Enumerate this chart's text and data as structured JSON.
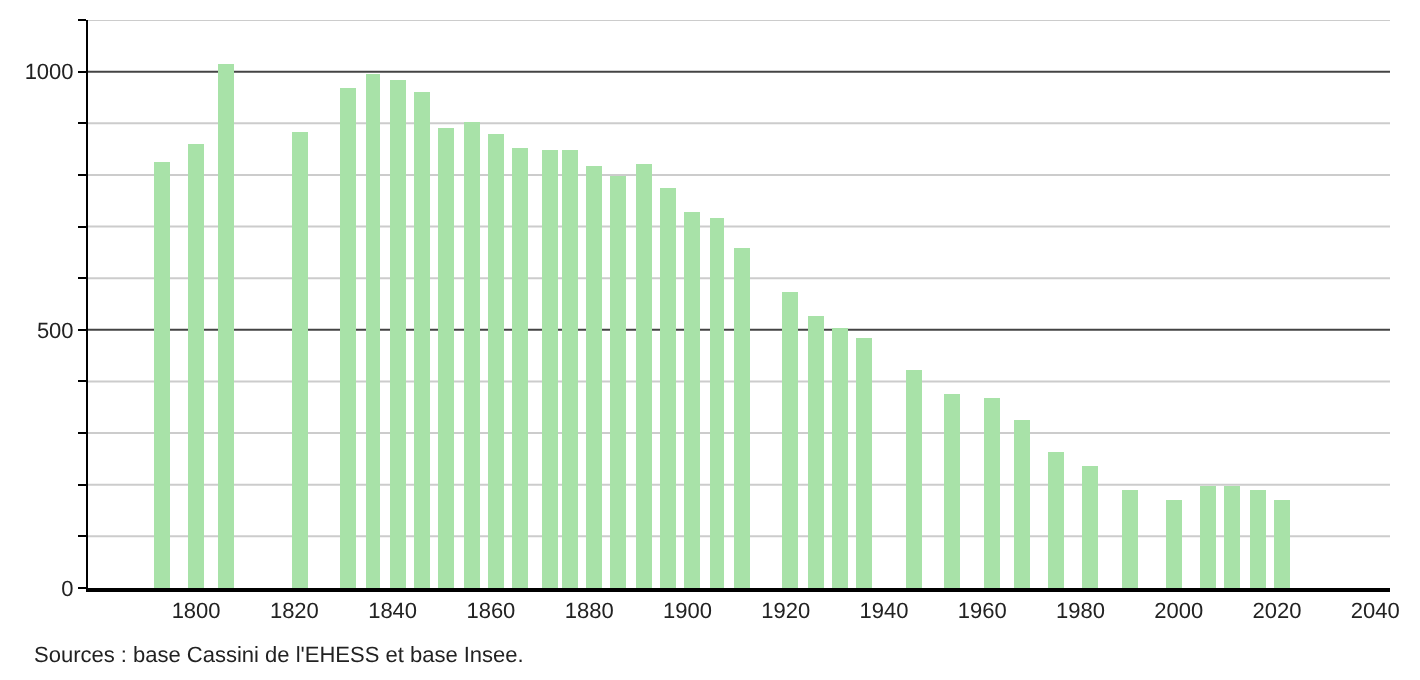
{
  "chart_data": {
    "type": "bar",
    "x": [
      1793,
      1800,
      1806,
      1821,
      1831,
      1836,
      1841,
      1846,
      1851,
      1856,
      1861,
      1866,
      1872,
      1876,
      1881,
      1886,
      1891,
      1896,
      1901,
      1906,
      1911,
      1921,
      1926,
      1931,
      1936,
      1946,
      1954,
      1962,
      1968,
      1975,
      1982,
      1990,
      1999,
      2006,
      2011,
      2016,
      2021
    ],
    "values": [
      825,
      860,
      1013,
      883,
      967,
      994,
      982,
      962,
      891,
      901,
      879,
      853,
      848,
      848,
      817,
      799,
      822,
      773,
      727,
      718,
      659,
      574,
      528,
      505,
      484,
      423,
      377,
      367,
      327,
      263,
      236,
      190,
      170,
      198,
      198,
      190,
      170
    ],
    "color": "#a8e2a8",
    "xlim": [
      1778,
      2043
    ],
    "xticks": [
      1800,
      1820,
      1840,
      1860,
      1880,
      1900,
      1920,
      1940,
      1960,
      1980,
      2000,
      2020,
      2040
    ],
    "ylim": [
      0,
      1100
    ],
    "yticks": [
      0,
      {
        "value": 100,
        "label": null
      },
      {
        "value": 200,
        "label": null
      },
      {
        "value": 300,
        "label": null
      },
      {
        "value": 400,
        "label": null
      },
      500,
      {
        "value": 600,
        "label": null
      },
      {
        "value": 700,
        "label": null
      },
      {
        "value": 800,
        "label": null
      },
      {
        "value": 900,
        "label": null
      },
      1000,
      {
        "value": 1100,
        "label": null
      }
    ],
    "grid": "y",
    "annotations": [
      "Sources : base Cassini de l'EHESS et base Insee."
    ]
  }
}
